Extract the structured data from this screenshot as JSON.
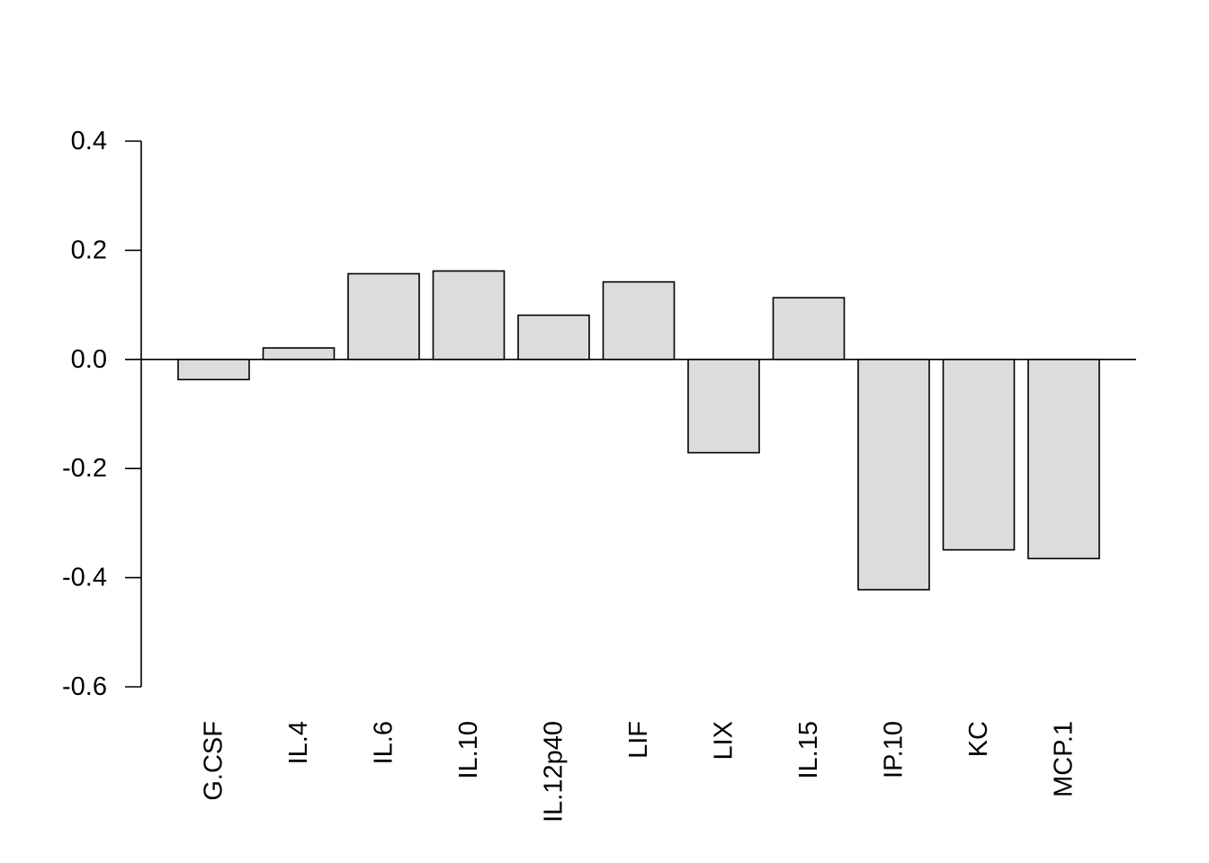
{
  "chart_data": {
    "type": "bar",
    "categories": [
      "G.CSF",
      "IL.4",
      "IL.6",
      "IL.10",
      "IL.12p40",
      "LIF",
      "LIX",
      "IL.15",
      "IP.10",
      "KC",
      "MCP.1"
    ],
    "values": [
      -0.037,
      0.021,
      0.157,
      0.162,
      0.081,
      0.142,
      -0.171,
      0.113,
      -0.422,
      -0.349,
      -0.365
    ],
    "yticks": [
      "0.4",
      "0.2",
      "0.0",
      "-0.2",
      "-0.4",
      "-0.6"
    ],
    "ylim": [
      -0.6,
      0.4
    ],
    "grid": false,
    "baseline": 0,
    "colors": {
      "bar_fill": "#dcdcdc",
      "bar_stroke": "#000000",
      "axis": "#000000"
    }
  }
}
